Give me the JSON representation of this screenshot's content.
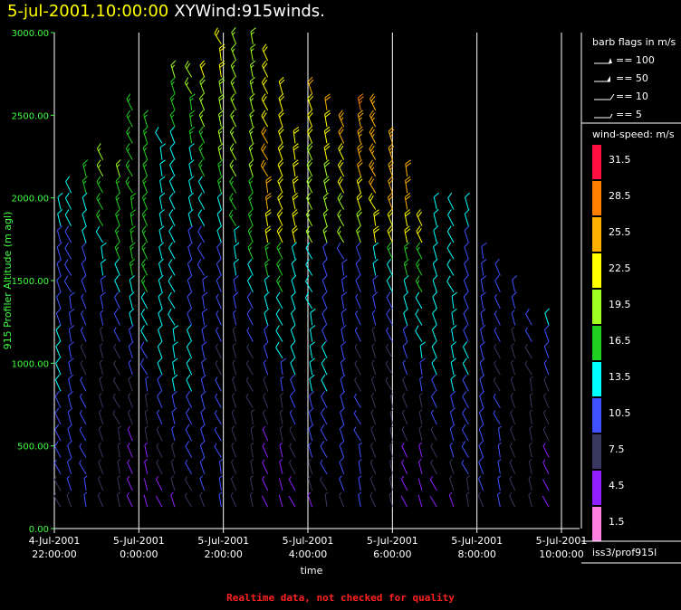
{
  "header": {
    "date_text": "5-jul-2001,10:00:00",
    "name_text": "XYWind:915winds."
  },
  "footer_text": "Realtime data, not checked for quality",
  "legend": {
    "barb_title": "barb flags in m/s",
    "barb_items": [
      "== 100",
      "== 50",
      "== 10",
      "== 5"
    ],
    "speed_title": "wind-speed: m/s",
    "speed_labels": [
      "31.5",
      "28.5",
      "25.5",
      "22.5",
      "19.5",
      "16.5",
      "13.5",
      "10.5",
      "7.5",
      "4.5",
      "1.5"
    ],
    "speed_colors": [
      "#ff1040",
      "#ff8000",
      "#ffb000",
      "#ffff00",
      "#a0ff20",
      "#20d020",
      "#00ffff",
      "#4050ff",
      "#383860",
      "#9020ff",
      "#ff80e0"
    ],
    "station": "iss3/prof915l"
  },
  "chart_data": {
    "type": "scatter",
    "title": "",
    "ylabel": "915 Profiler Altitude (m agl)",
    "xlabel": "time",
    "ylim": [
      0,
      3000
    ],
    "yticks": [
      "0.00",
      "500.00",
      "1000.00",
      "1500.00",
      "2000.00",
      "2500.00",
      "3000.00"
    ],
    "xlim_hours": [
      -2,
      10
    ],
    "xticks": [
      {
        "hour": -2,
        "date": "4-Jul-2001",
        "time": "22:00:00"
      },
      {
        "hour": 0,
        "date": "5-Jul-2001",
        "time": "0:00:00"
      },
      {
        "hour": 2,
        "date": "5-Jul-2001",
        "time": "2:00:00"
      },
      {
        "hour": 4,
        "date": "5-Jul-2001",
        "time": "4:00:00"
      },
      {
        "hour": 6,
        "date": "5-Jul-2001",
        "time": "6:00:00"
      },
      {
        "hour": 8,
        "date": "5-Jul-2001",
        "time": "8:00:00"
      },
      {
        "hour": 10,
        "date": "5-Jul-2001",
        "time": "10:00:00"
      }
    ],
    "grid_hours": [
      0,
      2,
      4,
      6,
      8,
      10
    ],
    "series": [
      {
        "hour": -1.85,
        "top": 2000
      },
      {
        "hour": -1.6,
        "top": 2100
      },
      {
        "hour": -1.25,
        "top": 2150
      },
      {
        "hour": -0.85,
        "top": 2300
      },
      {
        "hour": -0.45,
        "top": 2200
      },
      {
        "hour": -0.15,
        "top": 2600
      },
      {
        "hour": 0.2,
        "top": 2520
      },
      {
        "hour": 0.55,
        "top": 2400
      },
      {
        "hour": 0.85,
        "top": 2800
      },
      {
        "hour": 1.25,
        "top": 2800
      },
      {
        "hour": 1.55,
        "top": 2750
      },
      {
        "hour": 1.95,
        "top": 3000
      },
      {
        "hour": 2.3,
        "top": 2980
      },
      {
        "hour": 2.7,
        "top": 2940
      },
      {
        "hour": 3.05,
        "top": 2900
      },
      {
        "hour": 3.4,
        "top": 2650
      },
      {
        "hour": 3.7,
        "top": 2400
      },
      {
        "hour": 4.1,
        "top": 2650
      },
      {
        "hour": 4.45,
        "top": 2600
      },
      {
        "hour": 4.85,
        "top": 2500
      },
      {
        "hour": 5.25,
        "top": 2600
      },
      {
        "hour": 5.6,
        "top": 2550
      },
      {
        "hour": 6.0,
        "top": 2400
      },
      {
        "hour": 6.35,
        "top": 2150
      },
      {
        "hour": 6.7,
        "top": 1900
      },
      {
        "hour": 7.05,
        "top": 1950
      },
      {
        "hour": 7.45,
        "top": 2000
      },
      {
        "hour": 7.8,
        "top": 1950
      },
      {
        "hour": 8.15,
        "top": 1700
      },
      {
        "hour": 8.55,
        "top": 1600
      },
      {
        "hour": 8.9,
        "top": 1450
      },
      {
        "hour": 9.3,
        "top": 1300
      },
      {
        "hour": 9.7,
        "top": 1250
      }
    ],
    "barb_step_m": 100
  }
}
